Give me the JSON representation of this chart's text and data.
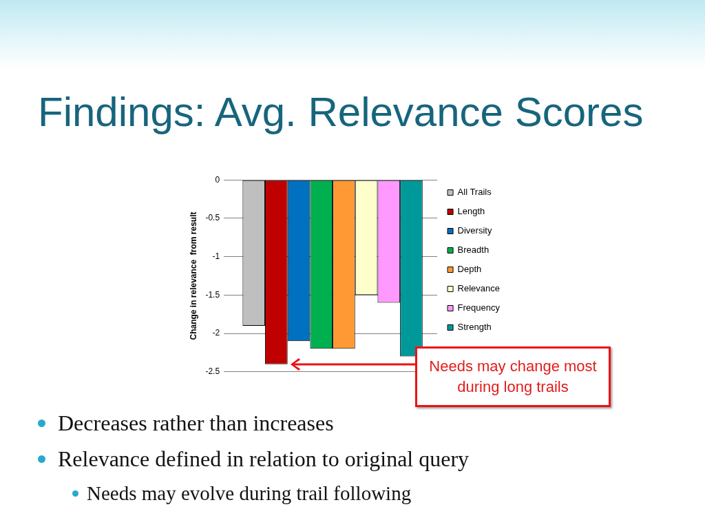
{
  "chart_data": {
    "type": "bar",
    "title": "Findings: Avg. Relevance Scores",
    "ylabel": "Change in relevance  from result",
    "categories": [
      null
    ],
    "series": [
      {
        "name": "All Trails",
        "color": "#bfbfbf",
        "values": [
          -1.9
        ]
      },
      {
        "name": "Length",
        "color": "#c00000",
        "values": [
          -2.4
        ]
      },
      {
        "name": "Diversity",
        "color": "#0070c0",
        "values": [
          -2.1
        ]
      },
      {
        "name": "Breadth",
        "color": "#00b050",
        "values": [
          -2.2
        ]
      },
      {
        "name": "Depth",
        "color": "#ff9933",
        "values": [
          -2.2
        ]
      },
      {
        "name": "Relevance",
        "color": "#ffffcc",
        "values": [
          -1.5
        ]
      },
      {
        "name": "Frequency",
        "color": "#ff99ff",
        "values": [
          -1.6
        ]
      },
      {
        "name": "Strength",
        "color": "#009999",
        "values": [
          -2.3
        ]
      }
    ],
    "ylim": [
      -2.5,
      0
    ],
    "yticks": [
      -2.5,
      -2,
      -1.5,
      -1,
      -0.5,
      0
    ],
    "grid": "y",
    "legend": "right",
    "tick_labels": "y",
    "annotations": [
      "Needs may change most during long trails",
      "Decreases rather than increases",
      "Relevance defined in relation to original query",
      "Needs may evolve during trail following"
    ]
  }
}
